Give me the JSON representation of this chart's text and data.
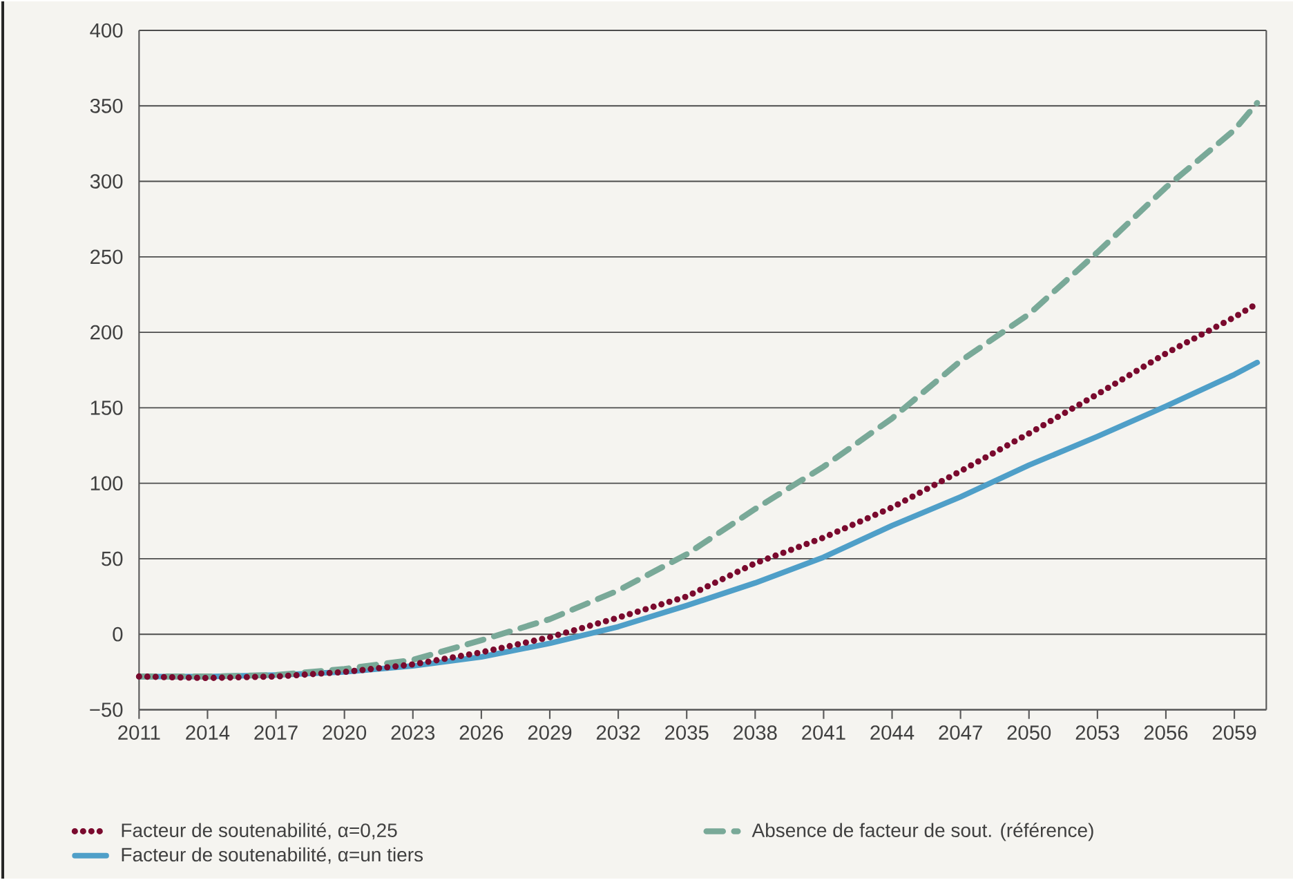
{
  "chart_data": {
    "type": "line",
    "x": [
      2011,
      2014,
      2017,
      2020,
      2023,
      2026,
      2029,
      2032,
      2035,
      2038,
      2041,
      2044,
      2047,
      2050,
      2053,
      2056,
      2059,
      2060
    ],
    "series": [
      {
        "name": "Facteur de soutenabilité, α=0,25",
        "color": "#7a0a2e",
        "line_style": "dotted",
        "values": [
          -28,
          -29,
          -28,
          -25,
          -20,
          -12,
          -2,
          11,
          25,
          47,
          64,
          84,
          108,
          133,
          159,
          186,
          210,
          219
        ]
      },
      {
        "name": "Absence de facteur de sout. (référence)",
        "color": "#79a998",
        "line_style": "dashed",
        "values": [
          -28,
          -28,
          -27,
          -23,
          -17,
          -4,
          10,
          29,
          53,
          83,
          111,
          143,
          181,
          212,
          253,
          296,
          334,
          352
        ]
      },
      {
        "name": "Facteur de soutenabilité, α=un tiers",
        "color": "#4f9fc8",
        "line_style": "solid",
        "values": [
          -28,
          -28,
          -27,
          -25,
          -21,
          -15,
          -6,
          5,
          19,
          34,
          51,
          72,
          91,
          112,
          131,
          151,
          172,
          180
        ]
      }
    ],
    "xlim": [
      2011,
      2060.4
    ],
    "xticks": [
      2011,
      2014,
      2017,
      2020,
      2023,
      2026,
      2029,
      2032,
      2035,
      2038,
      2041,
      2044,
      2047,
      2050,
      2053,
      2056,
      2059
    ],
    "ylim": [
      -50,
      400
    ],
    "yticks": [
      {
        "value": -50,
        "label": "−50"
      },
      0,
      50,
      100,
      150,
      200,
      250,
      300,
      350,
      400
    ],
    "grid": "y",
    "legend": "bottom",
    "marker": "none"
  }
}
